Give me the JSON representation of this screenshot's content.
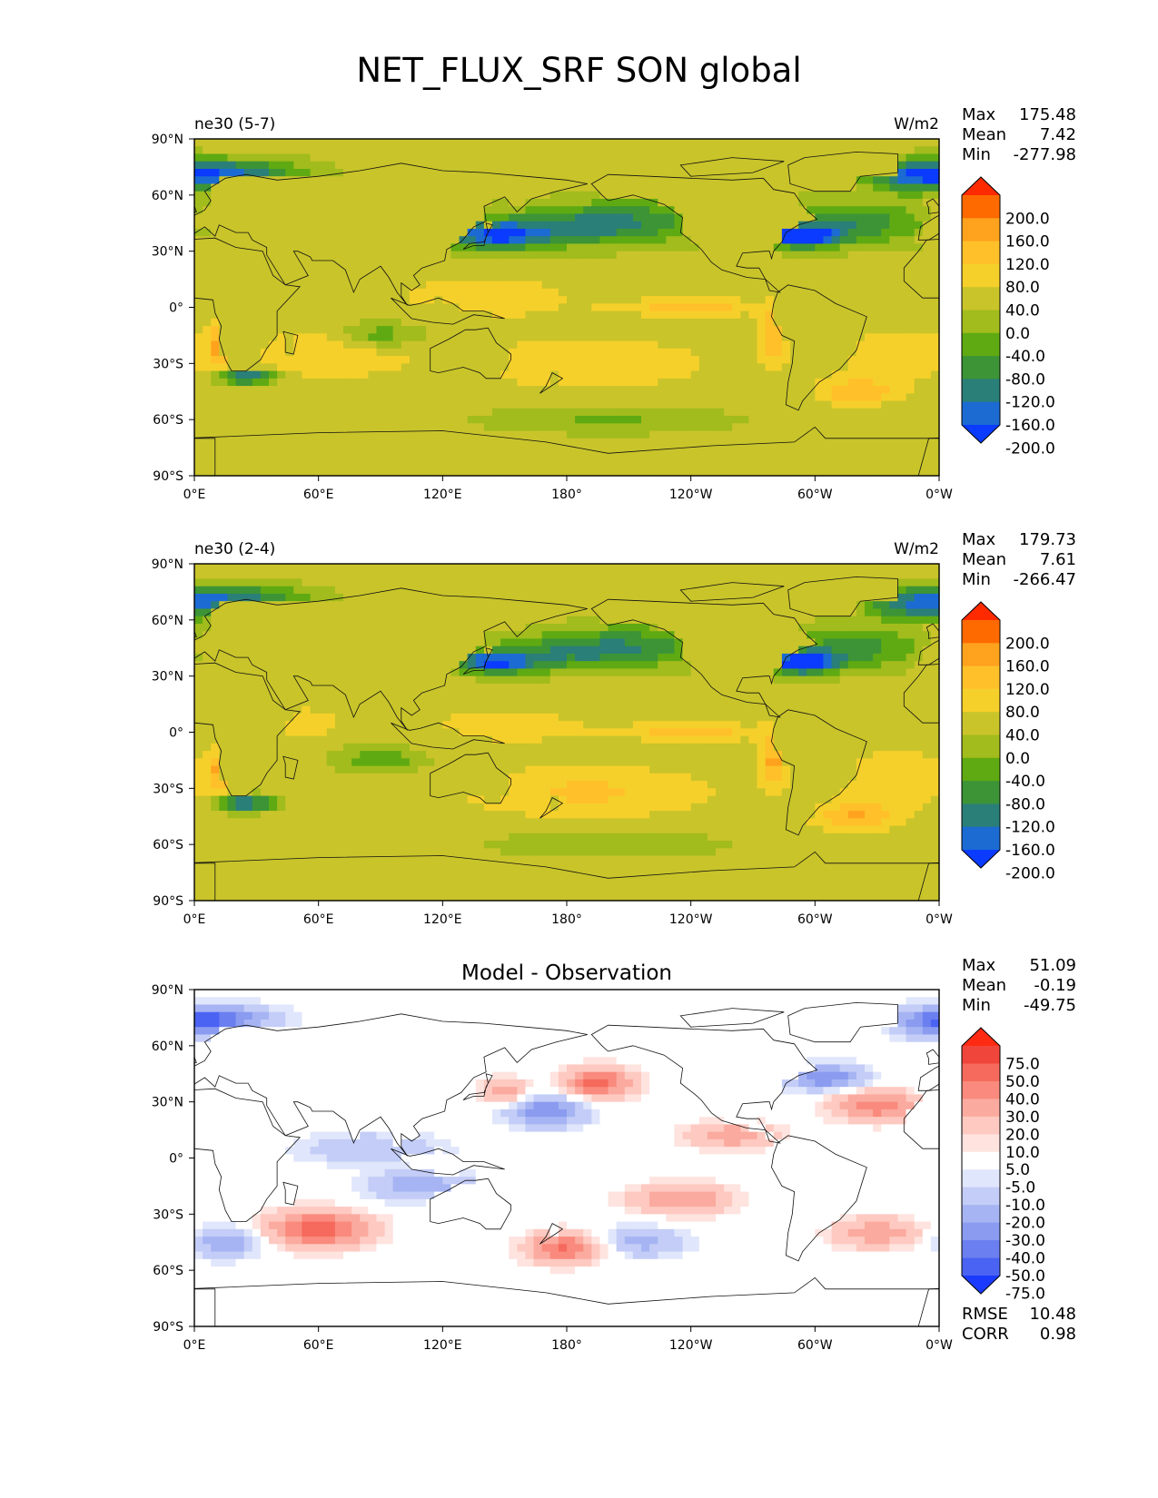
{
  "title": "NET_FLUX_SRF SON global",
  "axes": {
    "y_ticks": [
      "90°N",
      "60°N",
      "30°N",
      "0°",
      "30°S",
      "60°S",
      "90°S"
    ],
    "x_ticks": [
      "0°E",
      "60°E",
      "120°E",
      "180°",
      "120°W",
      "60°W",
      "0°W"
    ]
  },
  "panels": [
    {
      "left_title": "ne30 (5-7)",
      "center_title": "",
      "units": "W/m2",
      "stats": [
        {
          "label": "Max",
          "value": "175.48"
        },
        {
          "label": "Mean",
          "value": "7.42"
        },
        {
          "label": "Min",
          "value": "-277.98"
        }
      ],
      "colorbar": {
        "labels": [
          "200.0",
          "160.0",
          "120.0",
          "80.0",
          "40.0",
          "0.0",
          "-40.0",
          "-80.0",
          "-120.0",
          "-160.0",
          "-200.0"
        ],
        "colors": [
          "#ff2a00",
          "#ff6a00",
          "#ffa21e",
          "#ffc02a",
          "#f6d02a",
          "#c9c42a",
          "#a1bc1c",
          "#5faa12",
          "#3c9436",
          "#2a7f78",
          "#1b6bd2",
          "#0a3bff"
        ]
      },
      "footer_stats": []
    },
    {
      "left_title": "ne30 (2-4)",
      "center_title": "",
      "units": "W/m2",
      "stats": [
        {
          "label": "Max",
          "value": "179.73"
        },
        {
          "label": "Mean",
          "value": "7.61"
        },
        {
          "label": "Min",
          "value": "-266.47"
        }
      ],
      "colorbar": {
        "labels": [
          "200.0",
          "160.0",
          "120.0",
          "80.0",
          "40.0",
          "0.0",
          "-40.0",
          "-80.0",
          "-120.0",
          "-160.0",
          "-200.0"
        ],
        "colors": [
          "#ff2a00",
          "#ff6a00",
          "#ffa21e",
          "#ffc02a",
          "#f6d02a",
          "#c9c42a",
          "#a1bc1c",
          "#5faa12",
          "#3c9436",
          "#2a7f78",
          "#1b6bd2",
          "#0a3bff"
        ]
      },
      "footer_stats": []
    },
    {
      "left_title": "",
      "center_title": "Model - Observation",
      "units": "",
      "stats": [
        {
          "label": "Max",
          "value": "51.09"
        },
        {
          "label": "Mean",
          "value": "-0.19"
        },
        {
          "label": "Min",
          "value": "-49.75"
        }
      ],
      "colorbar": {
        "labels": [
          "75.0",
          "50.0",
          "40.0",
          "30.0",
          "20.0",
          "10.0",
          "5.0",
          "-5.0",
          "-10.0",
          "-20.0",
          "-30.0",
          "-40.0",
          "-50.0",
          "-75.0"
        ],
        "colors": [
          "#ff2a12",
          "#f0453a",
          "#f56a5c",
          "#f98a7d",
          "#fbaa9f",
          "#fdc9c0",
          "#fee3df",
          "#ffffff",
          "#e0e6fb",
          "#c3cdf7",
          "#a6b4f3",
          "#8a9bf0",
          "#6b7ff0",
          "#4a63f2",
          "#1a3bff"
        ]
      },
      "footer_stats": [
        {
          "label": "RMSE",
          "value": "10.48"
        },
        {
          "label": "CORR",
          "value": "0.98"
        }
      ]
    }
  ],
  "chart_data": [
    {
      "type": "heatmap",
      "title": "ne30 (5-7)",
      "units": "W/m2",
      "x_ticks": [
        "0°E",
        "60°E",
        "120°E",
        "180°",
        "120°W",
        "60°W",
        "0°W"
      ],
      "y_ticks": [
        "90°N",
        "60°N",
        "30°N",
        "0°",
        "30°S",
        "60°S",
        "90°S"
      ],
      "xlim": [
        0,
        360
      ],
      "ylim": [
        -90,
        90
      ],
      "levels": [
        -200,
        -160,
        -120,
        -80,
        -40,
        0,
        40,
        80,
        120,
        160,
        200
      ],
      "max": 175.48,
      "mean": 7.42,
      "min": -277.98,
      "field": {
        "base": 15,
        "land_value": 5,
        "antarctica_value": 5,
        "features": [
          {
            "lon": 145,
            "lat": 38,
            "amp": -170,
            "slon": 16,
            "slat": 5
          },
          {
            "lon": 175,
            "lat": 42,
            "amp": -120,
            "slon": 35,
            "slat": 7
          },
          {
            "lon": 215,
            "lat": 48,
            "amp": -90,
            "slon": 30,
            "slat": 8
          },
          {
            "lon": 293,
            "lat": 38,
            "amp": -260,
            "slon": 12,
            "slat": 4
          },
          {
            "lon": 318,
            "lat": 45,
            "amp": -130,
            "slon": 25,
            "slat": 8
          },
          {
            "lon": 350,
            "lat": 70,
            "amp": -170,
            "slon": 18,
            "slat": 6
          },
          {
            "lon": 20,
            "lat": 72,
            "amp": -150,
            "slon": 25,
            "slat": 5
          },
          {
            "lon": 25,
            "lat": -37,
            "amp": -200,
            "slon": 10,
            "slat": 3
          },
          {
            "lon": 90,
            "lat": -15,
            "amp": -90,
            "slon": 14,
            "slat": 5
          },
          {
            "lon": 200,
            "lat": -60,
            "amp": -60,
            "slon": 40,
            "slat": 5
          },
          {
            "lon": 240,
            "lat": 0,
            "amp": 90,
            "slon": 25,
            "slat": 3
          },
          {
            "lon": 280,
            "lat": -15,
            "amp": 110,
            "slon": 5,
            "slat": 10
          },
          {
            "lon": 12,
            "lat": -20,
            "amp": 100,
            "slon": 4,
            "slat": 8
          },
          {
            "lon": 60,
            "lat": -25,
            "amp": 60,
            "slon": 30,
            "slat": 10
          },
          {
            "lon": 140,
            "lat": 5,
            "amp": 55,
            "slon": 30,
            "slat": 8
          },
          {
            "lon": 190,
            "lat": -30,
            "amp": 65,
            "slon": 40,
            "slat": 9
          },
          {
            "lon": 320,
            "lat": -45,
            "amp": 100,
            "slon": 14,
            "slat": 5
          },
          {
            "lon": 340,
            "lat": -25,
            "amp": 55,
            "slon": 20,
            "slat": 10
          }
        ]
      }
    },
    {
      "type": "heatmap",
      "title": "ne30 (2-4)",
      "units": "W/m2",
      "x_ticks": [
        "0°E",
        "60°E",
        "120°E",
        "180°",
        "120°W",
        "60°W",
        "0°W"
      ],
      "y_ticks": [
        "90°N",
        "60°N",
        "30°N",
        "0°",
        "30°S",
        "60°S",
        "90°S"
      ],
      "xlim": [
        0,
        360
      ],
      "ylim": [
        -90,
        90
      ],
      "levels": [
        -200,
        -160,
        -120,
        -80,
        -40,
        0,
        40,
        80,
        120,
        160,
        200
      ],
      "max": 179.73,
      "mean": 7.61,
      "min": -266.47,
      "field": {
        "base": 18,
        "land_value": 5,
        "antarctica_value": 5,
        "features": [
          {
            "lon": 145,
            "lat": 37,
            "amp": -190,
            "slon": 14,
            "slat": 4
          },
          {
            "lon": 180,
            "lat": 42,
            "amp": -110,
            "slon": 35,
            "slat": 7
          },
          {
            "lon": 215,
            "lat": 48,
            "amp": -85,
            "slon": 30,
            "slat": 8
          },
          {
            "lon": 293,
            "lat": 37,
            "amp": -265,
            "slon": 12,
            "slat": 4
          },
          {
            "lon": 318,
            "lat": 45,
            "amp": -120,
            "slon": 25,
            "slat": 8
          },
          {
            "lon": 350,
            "lat": 68,
            "amp": -160,
            "slon": 18,
            "slat": 6
          },
          {
            "lon": 22,
            "lat": 72,
            "amp": -140,
            "slon": 25,
            "slat": 5
          },
          {
            "lon": 25,
            "lat": -38,
            "amp": -190,
            "slon": 10,
            "slat": 3
          },
          {
            "lon": 90,
            "lat": -15,
            "amp": -95,
            "slon": 14,
            "slat": 5
          },
          {
            "lon": 200,
            "lat": -60,
            "amp": -55,
            "slon": 40,
            "slat": 5
          },
          {
            "lon": 240,
            "lat": 0,
            "amp": 85,
            "slon": 25,
            "slat": 3
          },
          {
            "lon": 280,
            "lat": -15,
            "amp": 110,
            "slon": 5,
            "slat": 10
          },
          {
            "lon": 12,
            "lat": -20,
            "amp": 100,
            "slon": 4,
            "slat": 8
          },
          {
            "lon": 55,
            "lat": 5,
            "amp": 60,
            "slon": 10,
            "slat": 5
          },
          {
            "lon": 150,
            "lat": 3,
            "amp": 55,
            "slon": 25,
            "slat": 6
          },
          {
            "lon": 190,
            "lat": -32,
            "amp": 70,
            "slon": 40,
            "slat": 9
          },
          {
            "lon": 320,
            "lat": -45,
            "amp": 100,
            "slon": 14,
            "slat": 5
          },
          {
            "lon": 340,
            "lat": -25,
            "amp": 60,
            "slon": 20,
            "slat": 10
          }
        ]
      }
    },
    {
      "type": "heatmap",
      "title": "Model - Observation",
      "units": "",
      "x_ticks": [
        "0°E",
        "60°E",
        "120°E",
        "180°",
        "120°W",
        "60°W",
        "0°W"
      ],
      "y_ticks": [
        "90°N",
        "60°N",
        "30°N",
        "0°",
        "30°S",
        "60°S",
        "90°S"
      ],
      "xlim": [
        0,
        360
      ],
      "ylim": [
        -90,
        90
      ],
      "levels": [
        -75,
        -50,
        -40,
        -30,
        -20,
        -10,
        -5,
        5,
        10,
        20,
        30,
        40,
        50,
        75
      ],
      "max": 51.09,
      "mean": -0.19,
      "min": -49.75,
      "rmse": 10.48,
      "corr": 0.98,
      "field": {
        "base": 0,
        "land_value": 0,
        "antarctica_value": 0,
        "features": [
          {
            "lon": 195,
            "lat": 40,
            "amp": 45,
            "slon": 12,
            "slat": 6
          },
          {
            "lon": 170,
            "lat": 25,
            "amp": -40,
            "slon": 14,
            "slat": 6
          },
          {
            "lon": 150,
            "lat": 35,
            "amp": 30,
            "slon": 8,
            "slat": 5
          },
          {
            "lon": 305,
            "lat": 43,
            "amp": -40,
            "slon": 14,
            "slat": 5
          },
          {
            "lon": 330,
            "lat": 28,
            "amp": 38,
            "slon": 16,
            "slat": 6
          },
          {
            "lon": 360,
            "lat": 72,
            "amp": -35,
            "slon": 15,
            "slat": 6
          },
          {
            "lon": 15,
            "lat": 75,
            "amp": -30,
            "slon": 20,
            "slat": 5
          },
          {
            "lon": 60,
            "lat": -38,
            "amp": 48,
            "slon": 18,
            "slat": 7
          },
          {
            "lon": 180,
            "lat": -48,
            "amp": 42,
            "slon": 14,
            "slat": 6
          },
          {
            "lon": 235,
            "lat": -22,
            "amp": 30,
            "slon": 18,
            "slat": 6
          },
          {
            "lon": 260,
            "lat": 12,
            "amp": 28,
            "slon": 16,
            "slat": 5
          },
          {
            "lon": 15,
            "lat": -45,
            "amp": -30,
            "slon": 12,
            "slat": 6
          },
          {
            "lon": 110,
            "lat": -15,
            "amp": -28,
            "slon": 18,
            "slat": 6
          },
          {
            "lon": 215,
            "lat": -45,
            "amp": -25,
            "slon": 16,
            "slat": 6
          },
          {
            "lon": 330,
            "lat": -40,
            "amp": 28,
            "slon": 16,
            "slat": 6
          },
          {
            "lon": 85,
            "lat": 5,
            "amp": -20,
            "slon": 25,
            "slat": 6
          }
        ]
      }
    }
  ]
}
